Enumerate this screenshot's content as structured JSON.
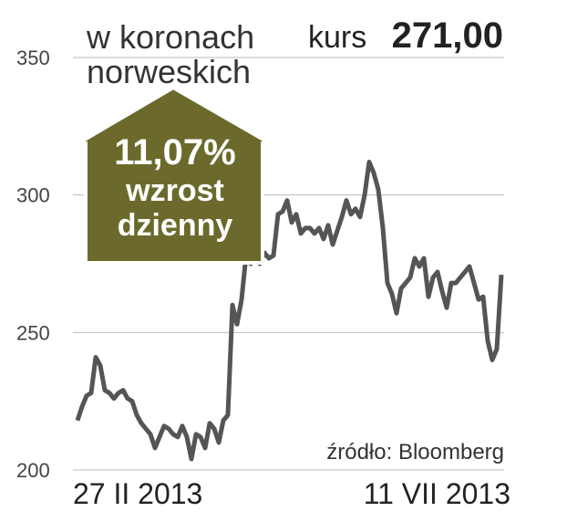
{
  "chart_data": {
    "type": "line",
    "unit_lines": [
      "w koronach",
      "norweskich"
    ],
    "price_label": "kurs",
    "price": "271,00",
    "badge": [
      "11,07%",
      "wzrost",
      "dzienny"
    ],
    "source": "źródło: Bloomberg",
    "categories": [
      "27 II 2013",
      null,
      null,
      null,
      null,
      null,
      null,
      null,
      null,
      null,
      null,
      null,
      null,
      null,
      null,
      null,
      null,
      null,
      null,
      null,
      null,
      null,
      null,
      null,
      null,
      null,
      null,
      null,
      null,
      null,
      null,
      null,
      null,
      null,
      null,
      null,
      null,
      null,
      null,
      null,
      null,
      null,
      null,
      null,
      null,
      null,
      null,
      null,
      null,
      null,
      null,
      null,
      null,
      null,
      null,
      null,
      null,
      null,
      null,
      null,
      null,
      null,
      null,
      null,
      null,
      null,
      null,
      null,
      null,
      null,
      null,
      null,
      null,
      null,
      null,
      null,
      null,
      null,
      null,
      null,
      null,
      null,
      null,
      null,
      null,
      null,
      null,
      null,
      null,
      null,
      null,
      null,
      null,
      "11 VII 2013"
    ],
    "values": [
      218,
      223,
      227,
      228,
      241,
      238,
      229,
      228,
      226,
      228,
      229,
      226,
      225,
      220,
      217,
      215,
      213,
      208,
      212,
      216,
      215,
      213,
      212,
      216,
      212,
      204,
      213,
      212,
      208,
      217,
      215,
      210,
      218,
      220,
      260,
      253,
      262,
      278,
      275,
      278,
      275,
      279,
      277,
      278,
      293,
      294,
      298,
      290,
      293,
      286,
      288,
      288,
      286,
      288,
      284,
      289,
      282,
      287,
      292,
      298,
      293,
      295,
      292,
      300,
      312,
      308,
      302,
      288,
      268,
      264,
      257,
      266,
      268,
      270,
      277,
      274,
      277,
      263,
      270,
      272,
      265,
      259,
      268,
      268,
      270,
      272,
      274,
      268,
      262,
      263,
      247,
      240,
      244,
      271
    ],
    "color": "#555555",
    "ylim": [
      200,
      350
    ],
    "yticks": [
      200,
      250,
      300,
      350
    ],
    "grid": true
  }
}
